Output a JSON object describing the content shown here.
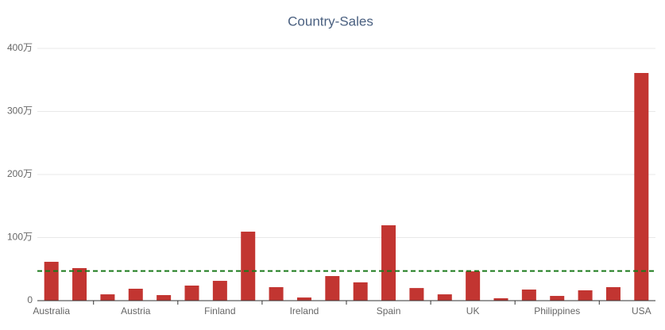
{
  "chart_data": {
    "type": "bar",
    "title": "Country-Sales",
    "categories": [
      "Australia",
      null,
      null,
      "Austria",
      null,
      null,
      "Finland",
      null,
      null,
      "Ireland",
      null,
      null,
      "Spain",
      null,
      null,
      "UK",
      null,
      null,
      "Philippines",
      null,
      null,
      "USA"
    ],
    "values": [
      616000,
      516000,
      100000,
      189000,
      88000,
      239000,
      314000,
      1094000,
      214000,
      50000,
      390000,
      290000,
      1195000,
      200000,
      100000,
      465000,
      38000,
      176000,
      75000,
      164000,
      214000,
      3610000
    ],
    "color": "#c23531",
    "ylim": [
      0,
      4000000
    ],
    "yticks": [
      0,
      {
        "value": 1000000,
        "label": "100万"
      },
      {
        "value": 2000000,
        "label": "200万"
      },
      {
        "value": 3000000,
        "label": "300万"
      },
      {
        "value": 4000000,
        "label": "400万"
      }
    ],
    "grid": true,
    "average_line": 470000,
    "average_line_color": "#1a7a1a"
  }
}
